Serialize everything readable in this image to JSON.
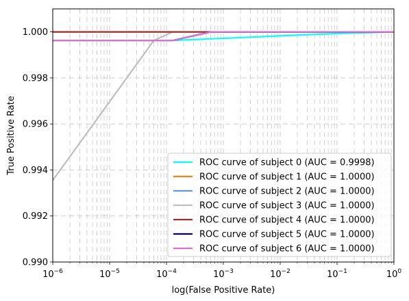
{
  "chart_data": {
    "type": "line",
    "title": "",
    "xlabel": "log(False Positive Rate)",
    "ylabel": "True Positive Rate",
    "x_scale": "log",
    "xlim": [
      1e-06,
      1
    ],
    "ylim": [
      0.99,
      1.001
    ],
    "x_ticks": [
      {
        "value": 1e-06,
        "base": "10",
        "exp": "−6"
      },
      {
        "value": 1e-05,
        "base": "10",
        "exp": "−5"
      },
      {
        "value": 0.0001,
        "base": "10",
        "exp": "−4"
      },
      {
        "value": 0.001,
        "base": "10",
        "exp": "−3"
      },
      {
        "value": 0.01,
        "base": "10",
        "exp": "−2"
      },
      {
        "value": 0.1,
        "base": "10",
        "exp": "−1"
      },
      {
        "value": 1,
        "base": "10",
        "exp": "0"
      }
    ],
    "y_ticks": [
      {
        "value": 0.99,
        "label": "0.990"
      },
      {
        "value": 0.992,
        "label": "0.992"
      },
      {
        "value": 0.994,
        "label": "0.994"
      },
      {
        "value": 0.996,
        "label": "0.996"
      },
      {
        "value": 0.998,
        "label": "0.998"
      },
      {
        "value": 1.0,
        "label": "1.000"
      }
    ],
    "grid": true,
    "grid_style": "dashed",
    "legend_position": "lower-right",
    "series": [
      {
        "name": "ROC curve of subject 0 (AUC = 0.9998)",
        "color": "#00ffff",
        "x": [
          1e-06,
          0.00013,
          0.001,
          0.01,
          0.1,
          1
        ],
        "y": [
          0.99963,
          0.99963,
          0.99972,
          0.99983,
          0.99993,
          1.0
        ]
      },
      {
        "name": "ROC curve of subject 1 (AUC = 1.0000)",
        "color": "#ff7f0e",
        "x": [
          1e-06,
          1
        ],
        "y": [
          1.0,
          1.0
        ]
      },
      {
        "name": "ROC curve of subject 2 (AUC = 1.0000)",
        "color": "#6495ed",
        "x": [
          1e-06,
          0.00013,
          0.0006,
          1
        ],
        "y": [
          0.99963,
          0.99963,
          1.0,
          1.0
        ]
      },
      {
        "name": "ROC curve of subject 3 (AUC = 1.0000)",
        "color": "#bebebe",
        "x": [
          1e-06,
          6e-05,
          0.00013,
          1
        ],
        "y": [
          0.99355,
          0.99963,
          1.0,
          1.0
        ]
      },
      {
        "name": "ROC curve of subject 4 (AUC = 1.0000)",
        "color": "#a52a2a",
        "x": [
          1e-06,
          1
        ],
        "y": [
          1.0,
          1.0
        ]
      },
      {
        "name": "ROC curve of subject 5 (AUC = 1.0000)",
        "color": "#000080",
        "x": [
          1e-06,
          0.00013,
          0.0006,
          1
        ],
        "y": [
          0.99963,
          0.99963,
          1.0,
          1.0
        ]
      },
      {
        "name": "ROC curve of subject 6 (AUC = 1.0000)",
        "color": "#da70d6",
        "x": [
          1e-06,
          0.00013,
          0.0006,
          1
        ],
        "y": [
          0.99963,
          0.99963,
          1.0,
          1.0
        ]
      }
    ]
  }
}
